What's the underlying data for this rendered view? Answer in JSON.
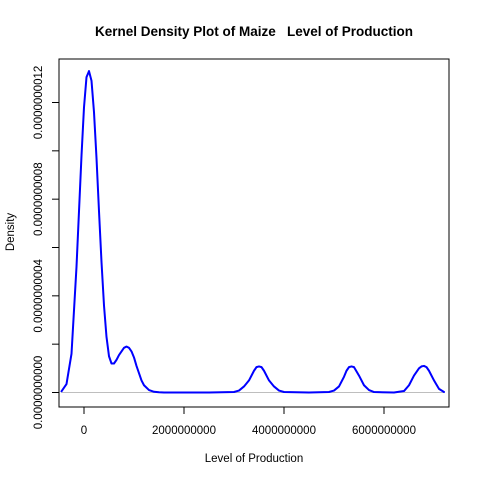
{
  "chart_data": {
    "type": "line",
    "title": "Kernel Density Plot of Maize   Level of Production",
    "xlabel": "Level of Production",
    "ylabel": "Density",
    "xlim": [
      -500000000,
      7300000000
    ],
    "ylim": [
      -6e-11,
      1.38e-09
    ],
    "x_ticks": [
      0,
      2000000000,
      4000000000,
      6000000000
    ],
    "x_tick_labels": [
      "0",
      "2000000000",
      "4000000000",
      "6000000000"
    ],
    "y_ticks": [
      0,
      2e-10,
      4e-10,
      6e-10,
      8e-10,
      1e-09,
      1.2e-09
    ],
    "y_tick_labels": [
      "0.0000000000",
      "",
      "0.0000000004",
      "",
      "0.0000000008",
      "",
      "0.0000000012"
    ],
    "grid": false,
    "baseline": 0,
    "colors": {
      "line": "#0000ff",
      "baseline": "#bebebe",
      "axis": "#000000"
    },
    "series": [
      {
        "x": [
          -450000000,
          -350000000,
          -250000000,
          -150000000,
          -50000000,
          0,
          50000000,
          100000000,
          150000000,
          200000000,
          250000000,
          300000000,
          350000000,
          400000000,
          450000000,
          500000000,
          550000000,
          600000000,
          650000000,
          700000000,
          750000000,
          800000000,
          850000000,
          900000000,
          950000000,
          1000000000,
          1050000000,
          1100000000,
          1150000000,
          1200000000,
          1300000000,
          1400000000,
          1500000000,
          1600000000,
          1700000000,
          2000000000,
          2500000000,
          3000000000,
          3100000000,
          3200000000,
          3300000000,
          3400000000,
          3450000000,
          3500000000,
          3550000000,
          3600000000,
          3700000000,
          3800000000,
          3900000000,
          4000000000,
          4500000000,
          4900000000,
          5000000000,
          5100000000,
          5200000000,
          5250000000,
          5300000000,
          5350000000,
          5400000000,
          5500000000,
          5600000000,
          5700000000,
          5800000000,
          6200000000,
          6400000000,
          6500000000,
          6600000000,
          6700000000,
          6750000000,
          6800000000,
          6850000000,
          6900000000,
          7000000000,
          7100000000,
          7200000000
        ],
        "values": [
          5e-12,
          3.5e-11,
          1.6e-10,
          5.2e-10,
          9.8e-10,
          1.18e-09,
          1.305e-09,
          1.33e-09,
          1.29e-09,
          1.16e-09,
          9.7e-10,
          7.5e-10,
          5.4e-10,
          3.6e-10,
          2.3e-10,
          1.5e-10,
          1.2e-10,
          1.2e-10,
          1.35e-10,
          1.55e-10,
          1.7e-10,
          1.85e-10,
          1.9e-10,
          1.85e-10,
          1.7e-10,
          1.45e-10,
          1.1e-10,
          8e-11,
          5e-11,
          3e-11,
          1e-11,
          3e-12,
          1e-12,
          0,
          0,
          0,
          0,
          2e-12,
          8e-12,
          2.5e-11,
          5e-11,
          9e-11,
          1.05e-10,
          1.08e-10,
          1.05e-10,
          9e-11,
          5e-11,
          2.5e-11,
          8e-12,
          2e-12,
          0,
          2e-12,
          8e-12,
          2.5e-11,
          6.5e-11,
          9e-11,
          1.05e-10,
          1.08e-10,
          1.05e-10,
          7e-11,
          3e-11,
          1e-11,
          2e-12,
          0,
          6e-12,
          3e-11,
          7e-11,
          1e-10,
          1.08e-10,
          1.1e-10,
          1.05e-10,
          9e-11,
          5e-11,
          1.5e-11,
          2e-12
        ]
      }
    ]
  }
}
